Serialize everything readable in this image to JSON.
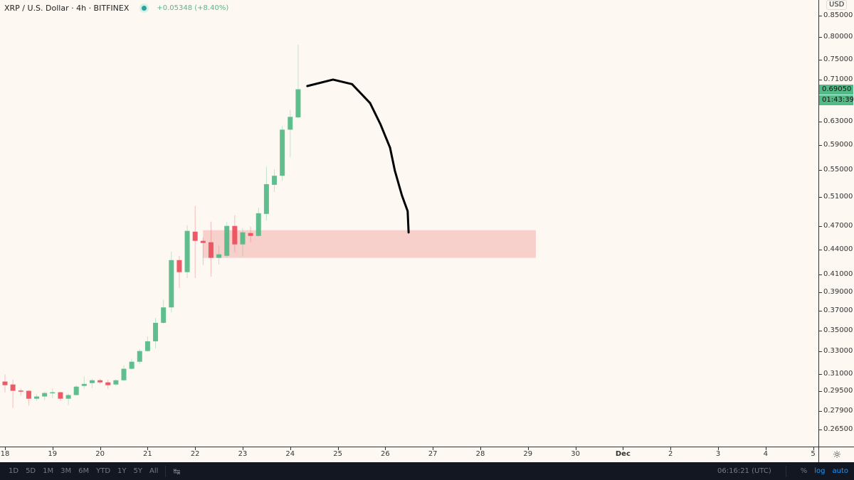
{
  "header": {
    "symbol": "XRP / U.S. Dollar · 4h · BITFINEX",
    "status_icon": "market-open-dot",
    "change": "+0.05348 (+8.40%)"
  },
  "price_axis": {
    "currency": "USD",
    "current_price": "0.69050",
    "countdown": "01:43:39"
  },
  "bottom_bar": {
    "ranges": [
      "1D",
      "5D",
      "1M",
      "3M",
      "6M",
      "YTD",
      "1Y",
      "5Y",
      "All"
    ],
    "goto_icon": "calendar-goto-icon",
    "clock": "06:16:21 (UTC)",
    "percent": "%",
    "log": "log",
    "auto": "auto",
    "settings_icon": "gear-icon"
  },
  "colors": {
    "up": "#53b987",
    "down": "#eb4d5c",
    "zone": "#f5c6c2",
    "background": "#fdf8f1",
    "drawing": "#000000"
  },
  "chart_data": {
    "type": "candlestick",
    "title": "XRP / U.S. Dollar · 4h · BITFINEX",
    "y_scale": "log",
    "ylim": [
      0.255,
      0.86
    ],
    "y_ticks": [
      "0.85000",
      "0.80000",
      "0.75000",
      "0.71000",
      "0.63000",
      "0.59000",
      "0.55000",
      "0.51000",
      "0.47000",
      "0.44000",
      "0.41000",
      "0.39000",
      "0.37000",
      "0.35000",
      "0.33000",
      "0.31000",
      "0.29500",
      "0.27900",
      "0.26500"
    ],
    "x_ticks": [
      {
        "label": "18",
        "t": "Nov 18 00:00"
      },
      {
        "label": "19",
        "t": "Nov 19 00:00"
      },
      {
        "label": "20",
        "t": "Nov 20 00:00"
      },
      {
        "label": "21",
        "t": "Nov 21 00:00"
      },
      {
        "label": "22",
        "t": "Nov 22 00:00"
      },
      {
        "label": "23",
        "t": "Nov 23 00:00"
      },
      {
        "label": "24",
        "t": "Nov 24 00:00"
      },
      {
        "label": "25",
        "t": "Nov 25 00:00"
      },
      {
        "label": "26",
        "t": "Nov 26 00:00"
      },
      {
        "label": "27",
        "t": "Nov 27 00:00"
      },
      {
        "label": "28",
        "t": "Nov 28 00:00"
      },
      {
        "label": "29",
        "t": "Nov 29 00:00"
      },
      {
        "label": "30",
        "t": "Nov 30 00:00"
      },
      {
        "label": "Dec",
        "t": "Dec 01 00:00"
      },
      {
        "label": "2",
        "t": "Dec 02 00:00"
      },
      {
        "label": "3",
        "t": "Dec 03 00:00"
      },
      {
        "label": "4",
        "t": "Dec 04 00:00"
      },
      {
        "label": "5",
        "t": "Dec 05 00:00"
      }
    ],
    "grid": false,
    "columns": [
      "time",
      "open",
      "high",
      "low",
      "close"
    ],
    "candles": [
      [
        "Nov 18 00:00",
        0.3033,
        0.3094,
        0.2943,
        0.3002
      ],
      [
        "Nov 18 04:00",
        0.3008,
        0.305,
        0.2816,
        0.2955
      ],
      [
        "Nov 18 08:00",
        0.2957,
        0.2973,
        0.2914,
        0.2953
      ],
      [
        "Nov 18 12:00",
        0.2955,
        0.2961,
        0.2834,
        0.289
      ],
      [
        "Nov 18 16:00",
        0.289,
        0.2926,
        0.2873,
        0.2908
      ],
      [
        "Nov 18 20:00",
        0.2908,
        0.2949,
        0.2879,
        0.2937
      ],
      [
        "Nov 19 00:00",
        0.2937,
        0.2973,
        0.2896,
        0.2943
      ],
      [
        "Nov 19 04:00",
        0.2943,
        0.2949,
        0.2873,
        0.289
      ],
      [
        "Nov 19 08:00",
        0.289,
        0.2932,
        0.284,
        0.292
      ],
      [
        "Nov 19 12:00",
        0.292,
        0.3002,
        0.2914,
        0.299
      ],
      [
        "Nov 19 16:00",
        0.2996,
        0.3075,
        0.2973,
        0.3013
      ],
      [
        "Nov 19 20:00",
        0.302,
        0.3057,
        0.2979,
        0.3044
      ],
      [
        "Nov 20 00:00",
        0.3044,
        0.3057,
        0.3013,
        0.3026
      ],
      [
        "Nov 20 04:00",
        0.3026,
        0.305,
        0.2973,
        0.3002
      ],
      [
        "Nov 20 08:00",
        0.3008,
        0.305,
        0.2996,
        0.3044
      ],
      [
        "Nov 20 12:00",
        0.3044,
        0.3175,
        0.3038,
        0.3144
      ],
      [
        "Nov 20 16:00",
        0.3144,
        0.3233,
        0.3137,
        0.3207
      ],
      [
        "Nov 20 20:00",
        0.3207,
        0.3325,
        0.3187,
        0.3305
      ],
      [
        "Nov 21 00:00",
        0.3305,
        0.3444,
        0.3298,
        0.3397
      ],
      [
        "Nov 21 04:00",
        0.3397,
        0.3628,
        0.3329,
        0.3578
      ],
      [
        "Nov 21 08:00",
        0.3578,
        0.382,
        0.3571,
        0.3737
      ],
      [
        "Nov 21 12:00",
        0.3737,
        0.4373,
        0.3685,
        0.4269
      ],
      [
        "Nov 21 16:00",
        0.4269,
        0.4321,
        0.3947,
        0.4127
      ],
      [
        "Nov 21 20:00",
        0.4127,
        0.4709,
        0.4059,
        0.4635
      ],
      [
        "Nov 22 00:00",
        0.4625,
        0.4971,
        0.4059,
        0.4507
      ],
      [
        "Nov 22 04:00",
        0.4507,
        0.4551,
        0.4211,
        0.448
      ],
      [
        "Nov 22 08:00",
        0.4489,
        0.4757,
        0.4075,
        0.4296
      ],
      [
        "Nov 22 12:00",
        0.4296,
        0.4446,
        0.4219,
        0.4339
      ],
      [
        "Nov 22 16:00",
        0.4321,
        0.4757,
        0.4296,
        0.47
      ],
      [
        "Nov 22 20:00",
        0.47,
        0.4843,
        0.4365,
        0.4462
      ],
      [
        "Nov 23 00:00",
        0.4462,
        0.4672,
        0.4313,
        0.4616
      ],
      [
        "Nov 23 04:00",
        0.4607,
        0.4691,
        0.4489,
        0.457
      ],
      [
        "Nov 23 08:00",
        0.457,
        0.4949,
        0.4561,
        0.4871
      ],
      [
        "Nov 23 12:00",
        0.4862,
        0.5555,
        0.4774,
        0.5287
      ],
      [
        "Nov 23 16:00",
        0.5277,
        0.5511,
        0.5172,
        0.5413
      ],
      [
        "Nov 23 20:00",
        0.5413,
        0.6225,
        0.5337,
        0.6163
      ],
      [
        "Nov 24 00:00",
        0.6163,
        0.6518,
        0.5703,
        0.6389
      ],
      [
        "Nov 24 04:00",
        0.638,
        0.7826,
        0.6368,
        0.6905
      ]
    ],
    "annotations": {
      "zone": {
        "t_start": "Nov 22 04:00",
        "t_end": "Nov 29 04:00",
        "price_top": 0.4644,
        "price_bottom": 0.4296
      },
      "drawn_path": [
        [
          "Nov 24 08:38",
          0.6968
        ],
        [
          "Nov 24 21:36",
          0.7095
        ],
        [
          "Nov 25 07:12",
          0.7006
        ],
        [
          "Nov 25 16:19",
          0.6642
        ],
        [
          "Nov 25 21:36",
          0.6254
        ],
        [
          "Nov 26 02:24",
          0.5858
        ],
        [
          "Nov 26 04:48",
          0.5494
        ],
        [
          "Nov 26 08:24",
          0.5121
        ],
        [
          "Nov 26 11:17",
          0.49
        ],
        [
          "Nov 26 11:46",
          0.4615
        ]
      ]
    }
  }
}
